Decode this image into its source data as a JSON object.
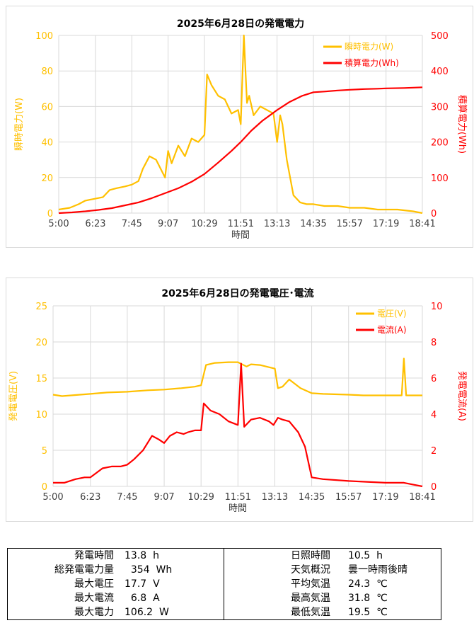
{
  "chart_data": [
    {
      "type": "line",
      "title": "2025年6月28日の発電電力",
      "xlabel": "時間",
      "ylabel_left": "瞬時電力(W)",
      "ylabel_right": "積算電力(Wh)",
      "x_ticks": [
        "5:00",
        "6:23",
        "7:45",
        "9:07",
        "10:29",
        "11:51",
        "13:13",
        "14:35",
        "15:57",
        "17:19",
        "18:41"
      ],
      "ylim_left": [
        0,
        100
      ],
      "y_ticks_left": [
        0,
        20,
        40,
        60,
        80,
        100
      ],
      "ylim_right": [
        0,
        500
      ],
      "y_ticks_right": [
        0,
        100,
        200,
        300,
        400,
        500
      ],
      "legend_position": "top-right",
      "grid": true,
      "series": [
        {
          "name": "瞬時電力(W)",
          "axis": "left",
          "color": "#FFC000",
          "x": [
            "5:00",
            "5:25",
            "5:45",
            "6:00",
            "6:20",
            "6:40",
            "6:55",
            "7:10",
            "7:30",
            "7:45",
            "8:00",
            "8:10",
            "8:25",
            "8:40",
            "8:50",
            "9:00",
            "9:07",
            "9:15",
            "9:30",
            "9:45",
            "10:00",
            "10:15",
            "10:29",
            "10:35",
            "10:45",
            "11:00",
            "11:15",
            "11:30",
            "11:45",
            "11:51",
            "11:58",
            "12:05",
            "12:10",
            "12:20",
            "12:35",
            "12:50",
            "13:05",
            "13:13",
            "13:20",
            "13:25",
            "13:35",
            "13:50",
            "14:05",
            "14:20",
            "14:35",
            "15:00",
            "15:30",
            "15:57",
            "16:30",
            "17:00",
            "17:19",
            "17:45",
            "18:20",
            "18:41"
          ],
          "values": [
            2,
            3,
            5,
            7,
            8,
            9,
            13,
            14,
            15,
            16,
            18,
            25,
            32,
            30,
            25,
            20,
            35,
            28,
            38,
            32,
            42,
            40,
            44,
            78,
            72,
            66,
            64,
            56,
            58,
            50,
            100,
            62,
            66,
            55,
            60,
            58,
            56,
            40,
            55,
            50,
            30,
            10,
            6,
            5,
            5,
            4,
            4,
            3,
            3,
            2,
            2,
            2,
            1,
            0
          ]
        },
        {
          "name": "積算電力(Wh)",
          "axis": "right",
          "color": "#FF0000",
          "x": [
            "5:00",
            "5:30",
            "6:00",
            "6:30",
            "7:00",
            "7:30",
            "8:00",
            "8:30",
            "9:00",
            "9:30",
            "10:00",
            "10:29",
            "11:00",
            "11:30",
            "11:51",
            "12:15",
            "12:40",
            "13:13",
            "13:40",
            "14:10",
            "14:35",
            "15:00",
            "15:30",
            "15:57",
            "16:30",
            "17:00",
            "17:19",
            "18:00",
            "18:41"
          ],
          "values": [
            0,
            2,
            5,
            9,
            14,
            22,
            30,
            42,
            56,
            70,
            88,
            110,
            142,
            175,
            200,
            232,
            260,
            290,
            312,
            330,
            340,
            342,
            345,
            347,
            349,
            350,
            351,
            352,
            354
          ]
        }
      ]
    },
    {
      "type": "line",
      "title": "2025年6月28日の発電電圧･電流",
      "xlabel": "時間",
      "ylabel_left": "発電電圧(V)",
      "ylabel_right": "発電電流(A)",
      "x_ticks": [
        "5:00",
        "6:23",
        "7:45",
        "9:07",
        "10:29",
        "11:51",
        "13:13",
        "14:35",
        "15:57",
        "17:19",
        "18:41"
      ],
      "ylim_left": [
        0,
        25
      ],
      "y_ticks_left": [
        0,
        5,
        10,
        15,
        20,
        25
      ],
      "ylim_right": [
        0,
        10
      ],
      "y_ticks_right": [
        0,
        2,
        4,
        6,
        8,
        10
      ],
      "legend_position": "top-right",
      "grid": true,
      "series": [
        {
          "name": "電圧(V)",
          "axis": "left",
          "color": "#FFC000",
          "x": [
            "5:00",
            "5:20",
            "6:00",
            "6:23",
            "7:00",
            "7:45",
            "8:30",
            "9:07",
            "9:45",
            "10:15",
            "10:29",
            "10:40",
            "11:00",
            "11:30",
            "11:51",
            "12:10",
            "12:20",
            "12:40",
            "13:00",
            "13:13",
            "13:20",
            "13:30",
            "13:45",
            "14:10",
            "14:35",
            "15:00",
            "15:57",
            "16:30",
            "17:19",
            "17:55",
            "18:00",
            "18:05",
            "18:20",
            "18:41"
          ],
          "values": [
            12.7,
            12.5,
            12.7,
            12.8,
            13.0,
            13.1,
            13.3,
            13.4,
            13.6,
            13.8,
            14.0,
            16.8,
            17.1,
            17.2,
            17.2,
            16.6,
            16.9,
            16.8,
            16.5,
            16.3,
            13.6,
            13.8,
            14.8,
            13.6,
            12.9,
            12.8,
            12.7,
            12.6,
            12.6,
            12.6,
            17.7,
            12.6,
            12.6,
            12.6
          ]
        },
        {
          "name": "電流(A)",
          "axis": "right",
          "color": "#FF0000",
          "x": [
            "5:00",
            "5:25",
            "5:50",
            "6:10",
            "6:23",
            "6:50",
            "7:10",
            "7:30",
            "7:45",
            "8:00",
            "8:20",
            "8:40",
            "8:55",
            "9:07",
            "9:20",
            "9:35",
            "9:50",
            "10:00",
            "10:15",
            "10:29",
            "10:35",
            "10:50",
            "11:10",
            "11:30",
            "11:51",
            "11:58",
            "12:05",
            "12:20",
            "12:40",
            "13:00",
            "13:10",
            "13:20",
            "13:30",
            "13:45",
            "14:05",
            "14:20",
            "14:35",
            "15:00",
            "15:57",
            "17:19",
            "18:00",
            "18:20",
            "18:41"
          ],
          "values": [
            0.2,
            0.2,
            0.4,
            0.5,
            0.5,
            1.0,
            1.1,
            1.1,
            1.2,
            1.5,
            2.0,
            2.8,
            2.6,
            2.4,
            2.8,
            3.0,
            2.9,
            3.0,
            3.1,
            3.1,
            4.6,
            4.2,
            4.0,
            3.6,
            3.4,
            6.8,
            3.3,
            3.7,
            3.8,
            3.6,
            3.4,
            3.8,
            3.7,
            3.6,
            3.0,
            2.2,
            0.5,
            0.4,
            0.3,
            0.2,
            0.2,
            0.1,
            0.0
          ]
        }
      ]
    }
  ],
  "stats": {
    "left": [
      {
        "label": "発電時間",
        "value": "13.8  h"
      },
      {
        "label": "総発電電力量",
        "value": "  354  Wh"
      },
      {
        "label": "最大電圧",
        "value": "17.7  V"
      },
      {
        "label": "最大電流",
        "value": "  6.8  A"
      },
      {
        "label": "最大電力",
        "value": "106.2  W"
      }
    ],
    "right": [
      {
        "label": "日照時間",
        "value": "10.5  h"
      },
      {
        "label": "天気概況",
        "value": "曇一時雨後晴"
      },
      {
        "label": "平均気温",
        "value": "24.3  ℃"
      },
      {
        "label": "最高気温",
        "value": "31.8  ℃"
      },
      {
        "label": "最低気温",
        "value": "19.5  ℃"
      }
    ]
  }
}
